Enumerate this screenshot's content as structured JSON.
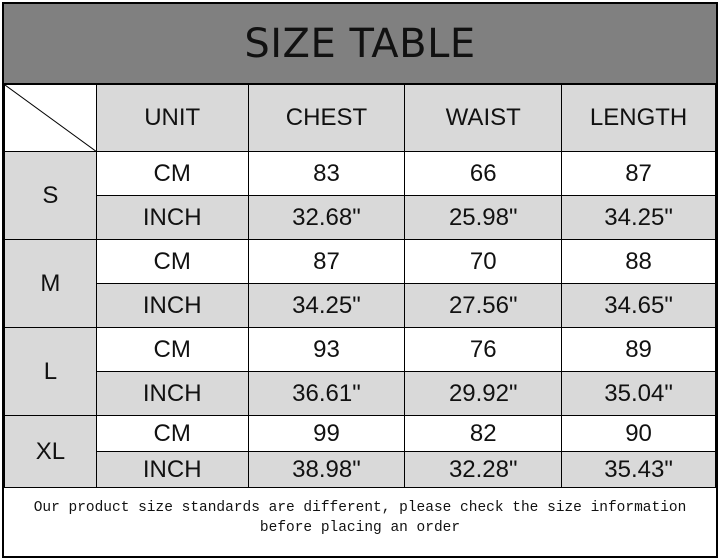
{
  "title": "SIZE TABLE",
  "headers": [
    "UNIT",
    "CHEST",
    "WAIST",
    "LENGTH"
  ],
  "sizes": [
    {
      "size": "S",
      "rows": [
        {
          "unit": "CM",
          "values": [
            "83",
            "66",
            "87"
          ]
        },
        {
          "unit": "INCH",
          "values": [
            "32.68\"",
            "25.98\"",
            "34.25\""
          ]
        }
      ]
    },
    {
      "size": "M",
      "rows": [
        {
          "unit": "CM",
          "values": [
            "87",
            "70",
            "88"
          ]
        },
        {
          "unit": "INCH",
          "values": [
            "34.25\"",
            "27.56\"",
            "34.65\""
          ]
        }
      ]
    },
    {
      "size": "L",
      "rows": [
        {
          "unit": "CM",
          "values": [
            "93",
            "76",
            "89"
          ]
        },
        {
          "unit": "INCH",
          "values": [
            "36.61\"",
            "29.92\"",
            "35.04\""
          ]
        }
      ]
    },
    {
      "size": "XL",
      "rows": [
        {
          "unit": "CM",
          "values": [
            "99",
            "82",
            "90"
          ]
        },
        {
          "unit": "INCH",
          "values": [
            "38.98\"",
            "32.28\"",
            "35.43\""
          ]
        }
      ]
    }
  ],
  "note": "Our product size standards are different, please check the size information before placing an order",
  "colors": {
    "title_bg": "#808080",
    "shaded_cell": "#d9d9d9"
  }
}
